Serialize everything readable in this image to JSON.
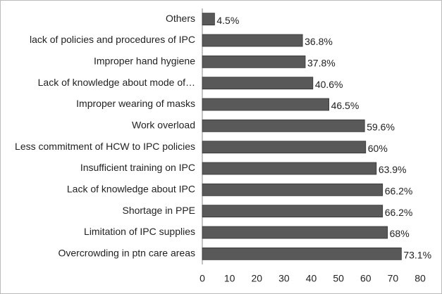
{
  "chart_data": {
    "type": "bar",
    "orientation": "horizontal",
    "categories": [
      "Others",
      "lack of policies and procedures of IPC",
      "Improper hand hygiene",
      "Lack of knowledge about mode of…",
      "Improper wearing of masks",
      "Work overload",
      "Less commitment of HCW to IPC policies",
      "Insufficient training on IPC",
      "Lack of knowledge about IPC",
      "Shortage in PPE",
      "Limitation of IPC supplies",
      "Overcrowding in ptn care areas"
    ],
    "values": [
      4.5,
      36.8,
      37.8,
      40.6,
      46.5,
      59.6,
      60,
      63.9,
      66.2,
      66.2,
      68,
      73.1
    ],
    "value_labels": [
      "4.5%",
      "36.8%",
      "37.8%",
      "40.6%",
      "46.5%",
      "59.6%",
      "60%",
      "63.9%",
      "66.2%",
      "66.2%",
      "68%",
      "73.1%"
    ],
    "color": "#595959",
    "xlim": [
      0,
      80
    ],
    "xticks": [
      0,
      10,
      20,
      30,
      40,
      50,
      60,
      70,
      80
    ],
    "grid": false
  }
}
